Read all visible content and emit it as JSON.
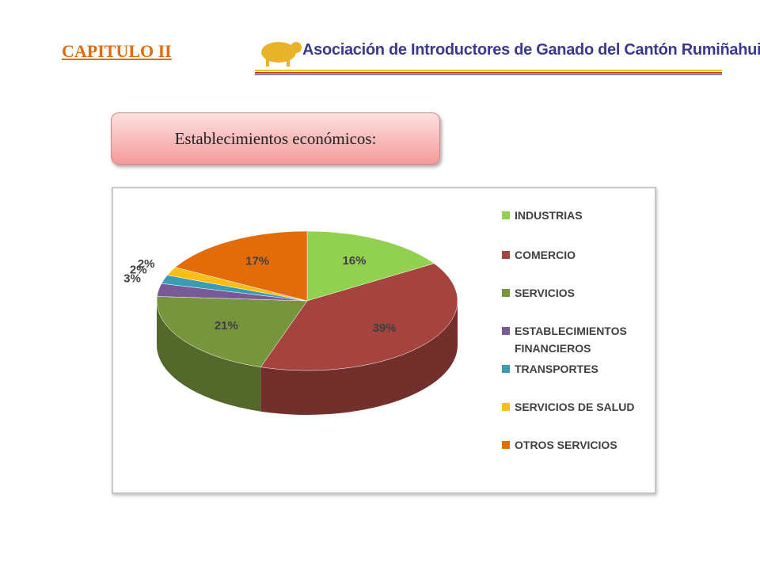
{
  "header": {
    "chapter": "CAPITULO II",
    "logo_text": "Asociación de Introductores de Ganado del Cantón Rumiñahui"
  },
  "banner": "Establecimientos económicos:",
  "chart_data": {
    "type": "pie",
    "categories": [
      "INDUSTRIAS",
      "COMERCIO",
      "SERVICIOS",
      "ESTABLECIMIENTOS FINANCIEROS",
      "TRANSPORTES",
      "SERVICIOS DE SALUD",
      "OTROS SERVICIOS"
    ],
    "values": [
      16,
      39,
      21,
      3,
      2,
      2,
      17
    ],
    "value_labels": [
      "16%",
      "39%",
      "21%",
      "3%",
      "2%",
      "2%",
      "17%"
    ],
    "colors": [
      "#92d050",
      "#a5433f",
      "#76953c",
      "#7a5a96",
      "#3b9bb3",
      "#fbbd16",
      "#e36c0a"
    ]
  }
}
